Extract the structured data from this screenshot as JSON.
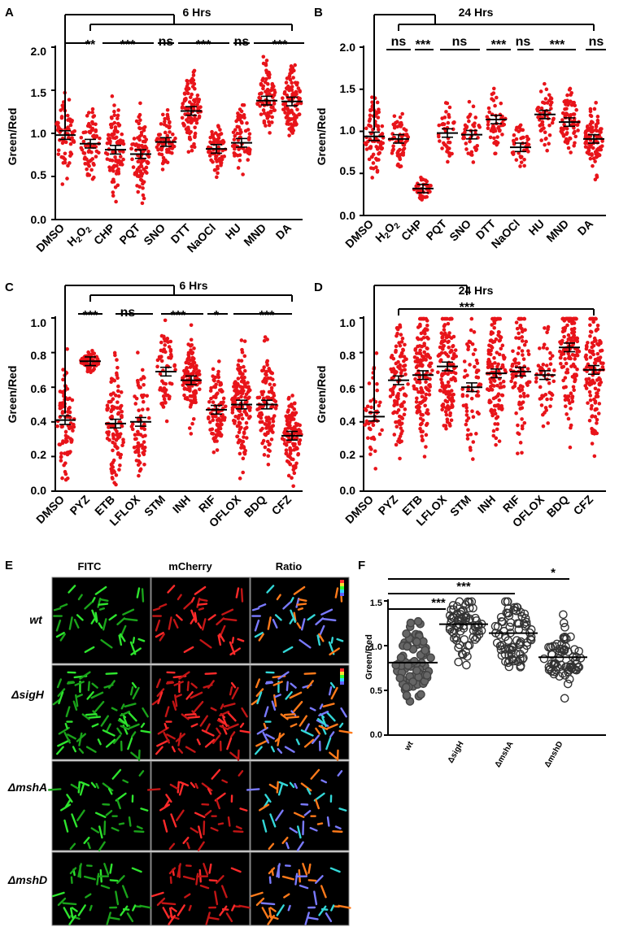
{
  "colors": {
    "dot": "#e8141a",
    "axis": "#000000",
    "micro_bg": "#000000",
    "micro_border": "#999999"
  },
  "chart_data": [
    {
      "panel": "A",
      "type": "scatter",
      "title": "6 Hrs",
      "ylabel": "Green/Red",
      "ylim": [
        0,
        2.0
      ],
      "ticks": [
        "0.0",
        "0.5",
        "1.0",
        "1.5",
        "2.0"
      ],
      "tick_values": [
        0,
        0.5,
        1.0,
        1.5,
        2.0
      ],
      "categories": [
        "DMSO",
        "H2O2",
        "CHP",
        "PQT",
        "SNO",
        "DTT",
        "NaOCl",
        "HU",
        "MND",
        "DA"
      ],
      "means": [
        0.98,
        0.88,
        0.81,
        0.76,
        0.9,
        1.26,
        0.82,
        0.89,
        1.38,
        1.37
      ],
      "spreads": [
        0.55,
        0.45,
        0.5,
        0.5,
        0.35,
        0.5,
        0.3,
        0.45,
        0.45,
        0.45
      ],
      "counts": [
        70,
        70,
        90,
        90,
        65,
        100,
        70,
        65,
        80,
        110
      ],
      "significance": [
        "**",
        "***",
        "ns",
        "***",
        "ns",
        "***"
      ]
    },
    {
      "panel": "B",
      "type": "scatter",
      "title": "24 Hrs",
      "ylabel": "Green/Red",
      "ylim": [
        0,
        2.0
      ],
      "ticks": [
        "0.0",
        "0.5",
        "1.0",
        "1.5",
        "2.0"
      ],
      "tick_values": [
        0,
        0.5,
        1.0,
        1.5,
        2.0
      ],
      "categories": [
        "DMSO",
        "H2O2",
        "CHP",
        "PQT",
        "SNO",
        "DTT",
        "NaOCl",
        "HU",
        "MND",
        "DA"
      ],
      "means": [
        0.94,
        0.91,
        0.32,
        0.98,
        0.96,
        1.14,
        0.81,
        1.2,
        1.11,
        0.91
      ],
      "spreads": [
        0.5,
        0.4,
        0.12,
        0.4,
        0.35,
        0.45,
        0.35,
        0.45,
        0.45,
        0.4
      ],
      "counts": [
        80,
        60,
        40,
        40,
        40,
        50,
        40,
        50,
        70,
        90
      ],
      "significance": [
        "ns",
        "***",
        "ns",
        "***",
        "ns",
        "***",
        "ns"
      ]
    },
    {
      "panel": "C",
      "type": "scatter",
      "title": "6 Hrs",
      "ylabel": "Green/Red",
      "ylim": [
        0,
        1.0
      ],
      "ticks": [
        "0.0",
        "0.2",
        "0.4",
        "0.6",
        "0.8",
        "1.0"
      ],
      "tick_values": [
        0,
        0.2,
        0.4,
        0.6,
        0.8,
        1.0
      ],
      "categories": [
        "DMSO",
        "PYZ",
        "ETB",
        "LFLOX",
        "STM",
        "INH",
        "RIF",
        "OFLOX",
        "BDQ",
        "CFZ"
      ],
      "means": [
        0.41,
        0.75,
        0.39,
        0.4,
        0.69,
        0.64,
        0.47,
        0.5,
        0.5,
        0.32
      ],
      "spreads": [
        0.33,
        0.06,
        0.4,
        0.35,
        0.3,
        0.25,
        0.25,
        0.35,
        0.35,
        0.25
      ],
      "counts": [
        90,
        80,
        110,
        70,
        60,
        110,
        100,
        140,
        110,
        120
      ],
      "significance": [
        "***",
        "ns",
        "***",
        "*",
        "***"
      ]
    },
    {
      "panel": "D",
      "type": "scatter",
      "title": "24 Hrs",
      "ylabel": "Green/Red",
      "ylim": [
        0,
        1.0
      ],
      "ticks": [
        "0.0",
        "0.2",
        "0.4",
        "0.6",
        "0.8",
        "1.0"
      ],
      "tick_values": [
        0,
        0.2,
        0.4,
        0.6,
        0.8,
        1.0
      ],
      "categories": [
        "DMSO",
        "PYZ",
        "ETB",
        "LFLOX",
        "STM",
        "INH",
        "RIF",
        "OFLOX",
        "BDQ",
        "CFZ"
      ],
      "means": [
        0.43,
        0.64,
        0.67,
        0.72,
        0.6,
        0.68,
        0.69,
        0.67,
        0.83,
        0.7
      ],
      "spreads": [
        0.33,
        0.45,
        0.45,
        0.45,
        0.45,
        0.45,
        0.4,
        0.35,
        0.45,
        0.45
      ],
      "counts": [
        45,
        110,
        150,
        140,
        60,
        130,
        90,
        50,
        150,
        130
      ],
      "significance": [
        "***"
      ]
    },
    {
      "panel": "F",
      "type": "scatter",
      "title": "",
      "ylabel": "Green/Red",
      "style": "hollow",
      "ylim": [
        0,
        1.5
      ],
      "ticks": [
        "0.0",
        "0.5",
        "1.0",
        "1.5"
      ],
      "tick_values": [
        0,
        0.5,
        1.0,
        1.5
      ],
      "categories": [
        "wt",
        "ΔsigH",
        "ΔmshA",
        "ΔmshD"
      ],
      "means": [
        0.81,
        1.24,
        1.14,
        0.87
      ],
      "spreads": [
        0.45,
        0.4,
        0.5,
        0.4
      ],
      "counts": [
        80,
        70,
        80,
        70
      ],
      "significance": [
        "***",
        "***",
        "*"
      ]
    }
  ],
  "panels": {
    "A": {
      "label": "A",
      "title": "6 Hrs",
      "ylabel": "Green/Red",
      "ticks": [
        "0.0",
        "0.5",
        "1.0",
        "1.5",
        "2.0"
      ],
      "categories": [
        "DMSO",
        "H",
        "CHP",
        "PQT",
        "SNO",
        "DTT",
        "NaOCl",
        "HU",
        "MND",
        "DA"
      ],
      "h2o2": {
        "h": "H",
        "s2": "2",
        "o": "O",
        "s3": "2"
      },
      "sig": [
        "**",
        "***",
        "ns",
        "***",
        "ns",
        "***"
      ]
    },
    "B": {
      "label": "B",
      "title": "24 Hrs",
      "ylabel": "Green/Red",
      "ticks": [
        "0.0",
        "0.5",
        "1.0",
        "1.5",
        "2.0"
      ],
      "categories": [
        "DMSO",
        "H",
        "CHP",
        "PQT",
        "SNO",
        "DTT",
        "NaOCl",
        "HU",
        "MND",
        "DA"
      ],
      "h2o2": {
        "h": "H",
        "s2": "2",
        "o": "O",
        "s3": "2"
      },
      "sig": [
        "ns",
        "***",
        "ns",
        "***",
        "ns",
        "***",
        "ns"
      ]
    },
    "C": {
      "label": "C",
      "title": "6 Hrs",
      "ylabel": "Green/Red",
      "ticks": [
        "0.0",
        "0.2",
        "0.4",
        "0.6",
        "0.8",
        "1.0"
      ],
      "categories": [
        "DMSO",
        "PYZ",
        "ETB",
        "LFLOX",
        "STM",
        "INH",
        "RIF",
        "OFLOX",
        "BDQ",
        "CFZ"
      ],
      "sig": [
        "***",
        "ns",
        "***",
        "*",
        "***"
      ]
    },
    "D": {
      "label": "D",
      "title": "24 Hrs",
      "ylabel": "Green/Red",
      "ticks": [
        "0.0",
        "0.2",
        "0.4",
        "0.6",
        "0.8",
        "1.0"
      ],
      "categories": [
        "DMSO",
        "PYZ",
        "ETB",
        "LFLOX",
        "STM",
        "INH",
        "RIF",
        "OFLOX",
        "BDQ",
        "CFZ"
      ],
      "sig": [
        "***"
      ]
    },
    "E": {
      "label": "E",
      "columns": [
        "FITC",
        "mCherry",
        "Ratio"
      ],
      "rows": [
        "wt",
        "ΔsigH",
        "ΔmshA",
        "ΔmshD"
      ]
    },
    "F": {
      "label": "F",
      "ylabel": "Green/Red",
      "ticks": [
        "0.0",
        "0.5",
        "1.0",
        "1.5"
      ],
      "categories": [
        "wt",
        "ΔsigH",
        "ΔmshA",
        "ΔmshD"
      ],
      "sig": [
        "***",
        "***",
        "*"
      ]
    }
  }
}
